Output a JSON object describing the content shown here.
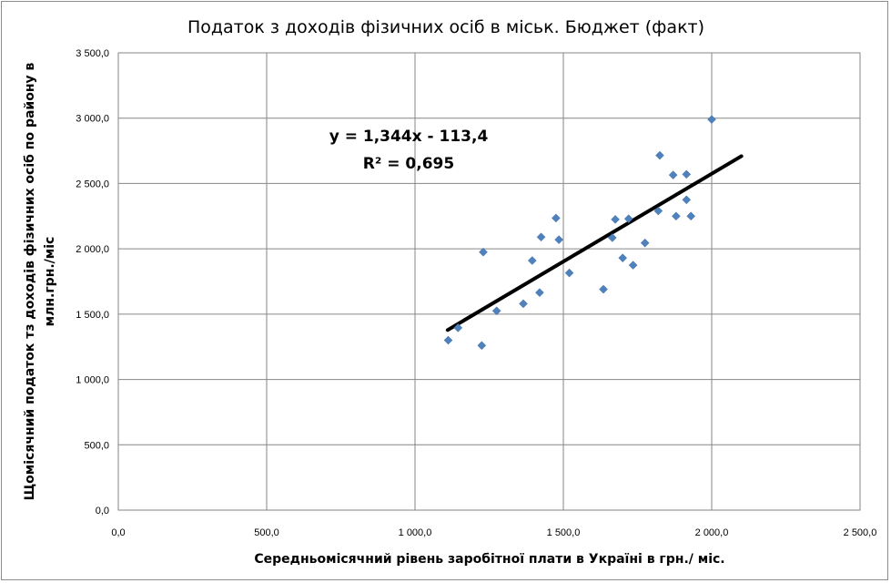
{
  "chart_data": {
    "type": "scatter",
    "title": "Податок з доходів фізичних осіб в міськ. Бюджет (факт)",
    "xlabel": "Середньомісячний рівень заробітної плати в Україні в грн./ міс.",
    "ylabel_lines": [
      "Щомісячний податок тз доходів фізичних осіб по району в",
      "млн.грн./міс"
    ],
    "xlim": [
      0,
      2500
    ],
    "ylim": [
      0,
      3500
    ],
    "x_ticks": [
      0,
      500,
      1000,
      1500,
      2000,
      2500
    ],
    "x_tick_labels": [
      "0,0",
      "500,0",
      "1 000,0",
      "1 500,0",
      "2 000,0",
      "2 500,0"
    ],
    "y_ticks": [
      0,
      500,
      1000,
      1500,
      2000,
      2500,
      3000,
      3500
    ],
    "y_tick_labels": [
      "0,0",
      "500,0",
      "1 000,0",
      "1 500,0",
      "2 000,0",
      "2 500,0",
      "3 000,0",
      "3 500,0"
    ],
    "grid": true,
    "legend": "none",
    "marker_color": "#4f81bd",
    "trendline_color": "#000000",
    "series": [
      {
        "points": [
          {
            "x": 1112,
            "y": 1300
          },
          {
            "x": 1145,
            "y": 1395
          },
          {
            "x": 1225,
            "y": 1260
          },
          {
            "x": 1230,
            "y": 1975
          },
          {
            "x": 1275,
            "y": 1525
          },
          {
            "x": 1365,
            "y": 1580
          },
          {
            "x": 1395,
            "y": 1910
          },
          {
            "x": 1420,
            "y": 1665
          },
          {
            "x": 1425,
            "y": 2090
          },
          {
            "x": 1475,
            "y": 2235
          },
          {
            "x": 1485,
            "y": 2070
          },
          {
            "x": 1520,
            "y": 1815
          },
          {
            "x": 1635,
            "y": 1690
          },
          {
            "x": 1665,
            "y": 2085
          },
          {
            "x": 1675,
            "y": 2225
          },
          {
            "x": 1700,
            "y": 1930
          },
          {
            "x": 1720,
            "y": 2230
          },
          {
            "x": 1735,
            "y": 1875
          },
          {
            "x": 1775,
            "y": 2045
          },
          {
            "x": 1820,
            "y": 2290
          },
          {
            "x": 1825,
            "y": 2715
          },
          {
            "x": 1870,
            "y": 2565
          },
          {
            "x": 1880,
            "y": 2250
          },
          {
            "x": 1915,
            "y": 2375
          },
          {
            "x": 1915,
            "y": 2570
          },
          {
            "x": 1930,
            "y": 2250
          },
          {
            "x": 2000,
            "y": 2990
          }
        ]
      }
    ],
    "trendline": {
      "slope": 1.344,
      "intercept": -113.4,
      "x_start": 1110,
      "x_end": 2100
    },
    "annotations": {
      "equation": "y = 1,344x - 113,4",
      "r2_label": "R² = 0,695"
    }
  }
}
